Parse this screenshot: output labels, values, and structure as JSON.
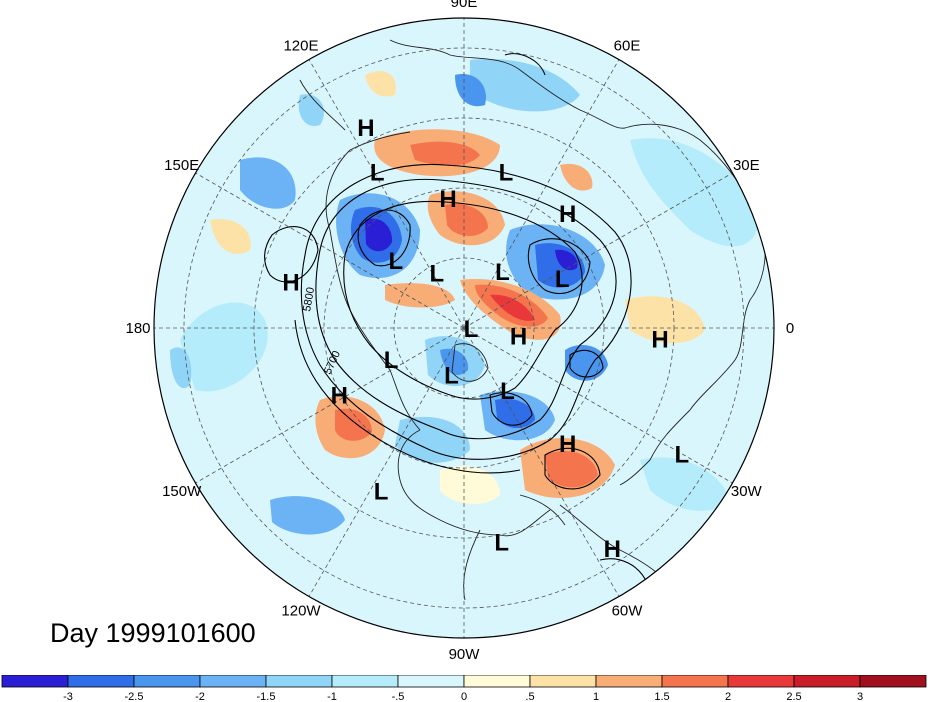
{
  "map": {
    "day_label": "Day 1999101600",
    "longitude_labels": [
      {
        "text": "90E",
        "lon": 90
      },
      {
        "text": "60E",
        "lon": 60
      },
      {
        "text": "30E",
        "lon": 30
      },
      {
        "text": "0",
        "lon": 0
      },
      {
        "text": "30W",
        "lon": -30
      },
      {
        "text": "60W",
        "lon": -60
      },
      {
        "text": "90W",
        "lon": -90
      },
      {
        "text": "120W",
        "lon": -120
      },
      {
        "text": "150W",
        "lon": -150
      },
      {
        "text": "180",
        "lon": 180
      },
      {
        "text": "150E",
        "lon": 150
      },
      {
        "text": "120E",
        "lon": 120
      }
    ],
    "contour_labels": [
      "5800",
      "5700"
    ],
    "pressure_centers": [
      {
        "type": "H",
        "lat": 25,
        "lon": 116
      },
      {
        "type": "L",
        "lat": 38,
        "lon": 119
      },
      {
        "type": "H",
        "lat": 52,
        "lon": 97
      },
      {
        "type": "H",
        "lat": 45,
        "lon": 48
      },
      {
        "type": "L",
        "lat": 43,
        "lon": 75
      },
      {
        "type": "H",
        "lat": 38,
        "lon": 165
      },
      {
        "type": "L",
        "lat": 62,
        "lon": 135
      },
      {
        "type": "L",
        "lat": 72,
        "lon": 116
      },
      {
        "type": "L",
        "lat": 70,
        "lon": 56
      },
      {
        "type": "L",
        "lat": 58,
        "lon": 27
      },
      {
        "type": "L",
        "lat": 88,
        "lon": 0
      },
      {
        "type": "H",
        "lat": 74,
        "lon": -8
      },
      {
        "type": "H",
        "lat": 33,
        "lon": -3
      },
      {
        "type": "L",
        "lat": 67,
        "lon": -157
      },
      {
        "type": "L",
        "lat": 76,
        "lon": -105
      },
      {
        "type": "L",
        "lat": 68,
        "lon": -55
      },
      {
        "type": "H",
        "lat": 49,
        "lon": -152
      },
      {
        "type": "L",
        "lat": 37,
        "lon": -117
      },
      {
        "type": "L",
        "lat": 27,
        "lon": -80
      },
      {
        "type": "H",
        "lat": 45,
        "lon": -48
      },
      {
        "type": "L",
        "lat": 17,
        "lon": -30
      },
      {
        "type": "H",
        "lat": 13,
        "lon": -56
      }
    ]
  },
  "colorbar": {
    "tick_labels": [
      "-3",
      "-2.5",
      "-2",
      "-1.5",
      "-1",
      "-.5",
      "0",
      ".5",
      "1",
      "1.5",
      "2",
      "2.5",
      "3"
    ],
    "colors": [
      "#2b1fd6",
      "#2f6ee8",
      "#4a96ef",
      "#6bb3f4",
      "#90d4f8",
      "#b4ecfb",
      "#daf6fd",
      "#fffad8",
      "#fde2a8",
      "#f8ac76",
      "#f4744e",
      "#e8383a",
      "#c91e2a",
      "#a0101f"
    ]
  }
}
